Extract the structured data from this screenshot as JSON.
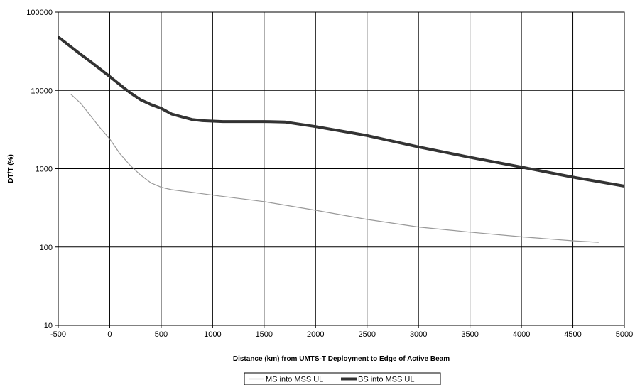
{
  "chart_data": {
    "type": "line",
    "title": "",
    "xlabel": "Distance (km) from UMTS-T Deployment to Edge of Active Beam",
    "ylabel": "DT/T (%)",
    "xlim": [
      -500,
      5000
    ],
    "ylim": [
      10,
      100000
    ],
    "yscale": "log",
    "grid": true,
    "legend_position": "bottom-center",
    "x_ticks": [
      "-500",
      "0",
      "500",
      "1000",
      "1500",
      "2000",
      "2500",
      "3000",
      "3500",
      "4000",
      "4500",
      "5000"
    ],
    "y_ticks": [
      "10",
      "100",
      "1000",
      "10000",
      "100000"
    ],
    "series": [
      {
        "name": "MS into MSS UL",
        "color": "#999999",
        "line_style": "thin",
        "x": [
          -380,
          -280,
          -200,
          -100,
          0,
          100,
          200,
          300,
          400,
          500,
          600,
          800,
          1000,
          1500,
          2000,
          2500,
          3000,
          3500,
          4000,
          4500,
          4750
        ],
        "y": [
          9000,
          6800,
          5000,
          3400,
          2400,
          1550,
          1100,
          830,
          660,
          580,
          540,
          500,
          460,
          380,
          295,
          225,
          180,
          155,
          135,
          120,
          115
        ]
      },
      {
        "name": "BS into MSS UL",
        "color": "#333333",
        "line_style": "thick",
        "x": [
          -500,
          -400,
          -300,
          -200,
          -100,
          0,
          100,
          200,
          300,
          400,
          500,
          600,
          700,
          800,
          900,
          1000,
          1100,
          1200,
          1500,
          1700,
          2000,
          2500,
          3000,
          3500,
          4000,
          4500,
          5000
        ],
        "y": [
          48000,
          38000,
          30000,
          24000,
          19000,
          15000,
          11800,
          9300,
          7600,
          6600,
          5900,
          5000,
          4600,
          4250,
          4100,
          4050,
          4000,
          4000,
          4000,
          3950,
          3450,
          2650,
          1900,
          1400,
          1050,
          780,
          600
        ]
      }
    ]
  }
}
